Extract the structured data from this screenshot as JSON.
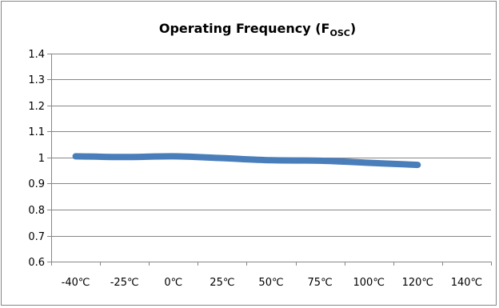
{
  "chart_data": {
    "type": "line",
    "title_main": "Operating Frequency (F",
    "title_sub": "OSC",
    "title_close": ")",
    "categories": [
      "-40℃",
      "-25℃",
      "0℃",
      "25℃",
      "50℃",
      "75℃",
      "100℃",
      "120℃",
      "140℃"
    ],
    "series": [
      {
        "values": [
          1.005,
          1.002,
          1.005,
          0.998,
          0.99,
          0.988,
          0.98,
          0.972,
          null
        ]
      }
    ],
    "ylim": [
      0.6,
      1.4
    ],
    "ytick_step": 0.1,
    "yticks": [
      "0.6",
      "0.7",
      "0.8",
      "0.9",
      "1",
      "1.1",
      "1.2",
      "1.3",
      "1.4"
    ],
    "grid": true,
    "legend": "none",
    "colors": {
      "series": "#4a7ebb",
      "grid": "#868686",
      "axis": "#868686",
      "border": "#868686"
    }
  }
}
